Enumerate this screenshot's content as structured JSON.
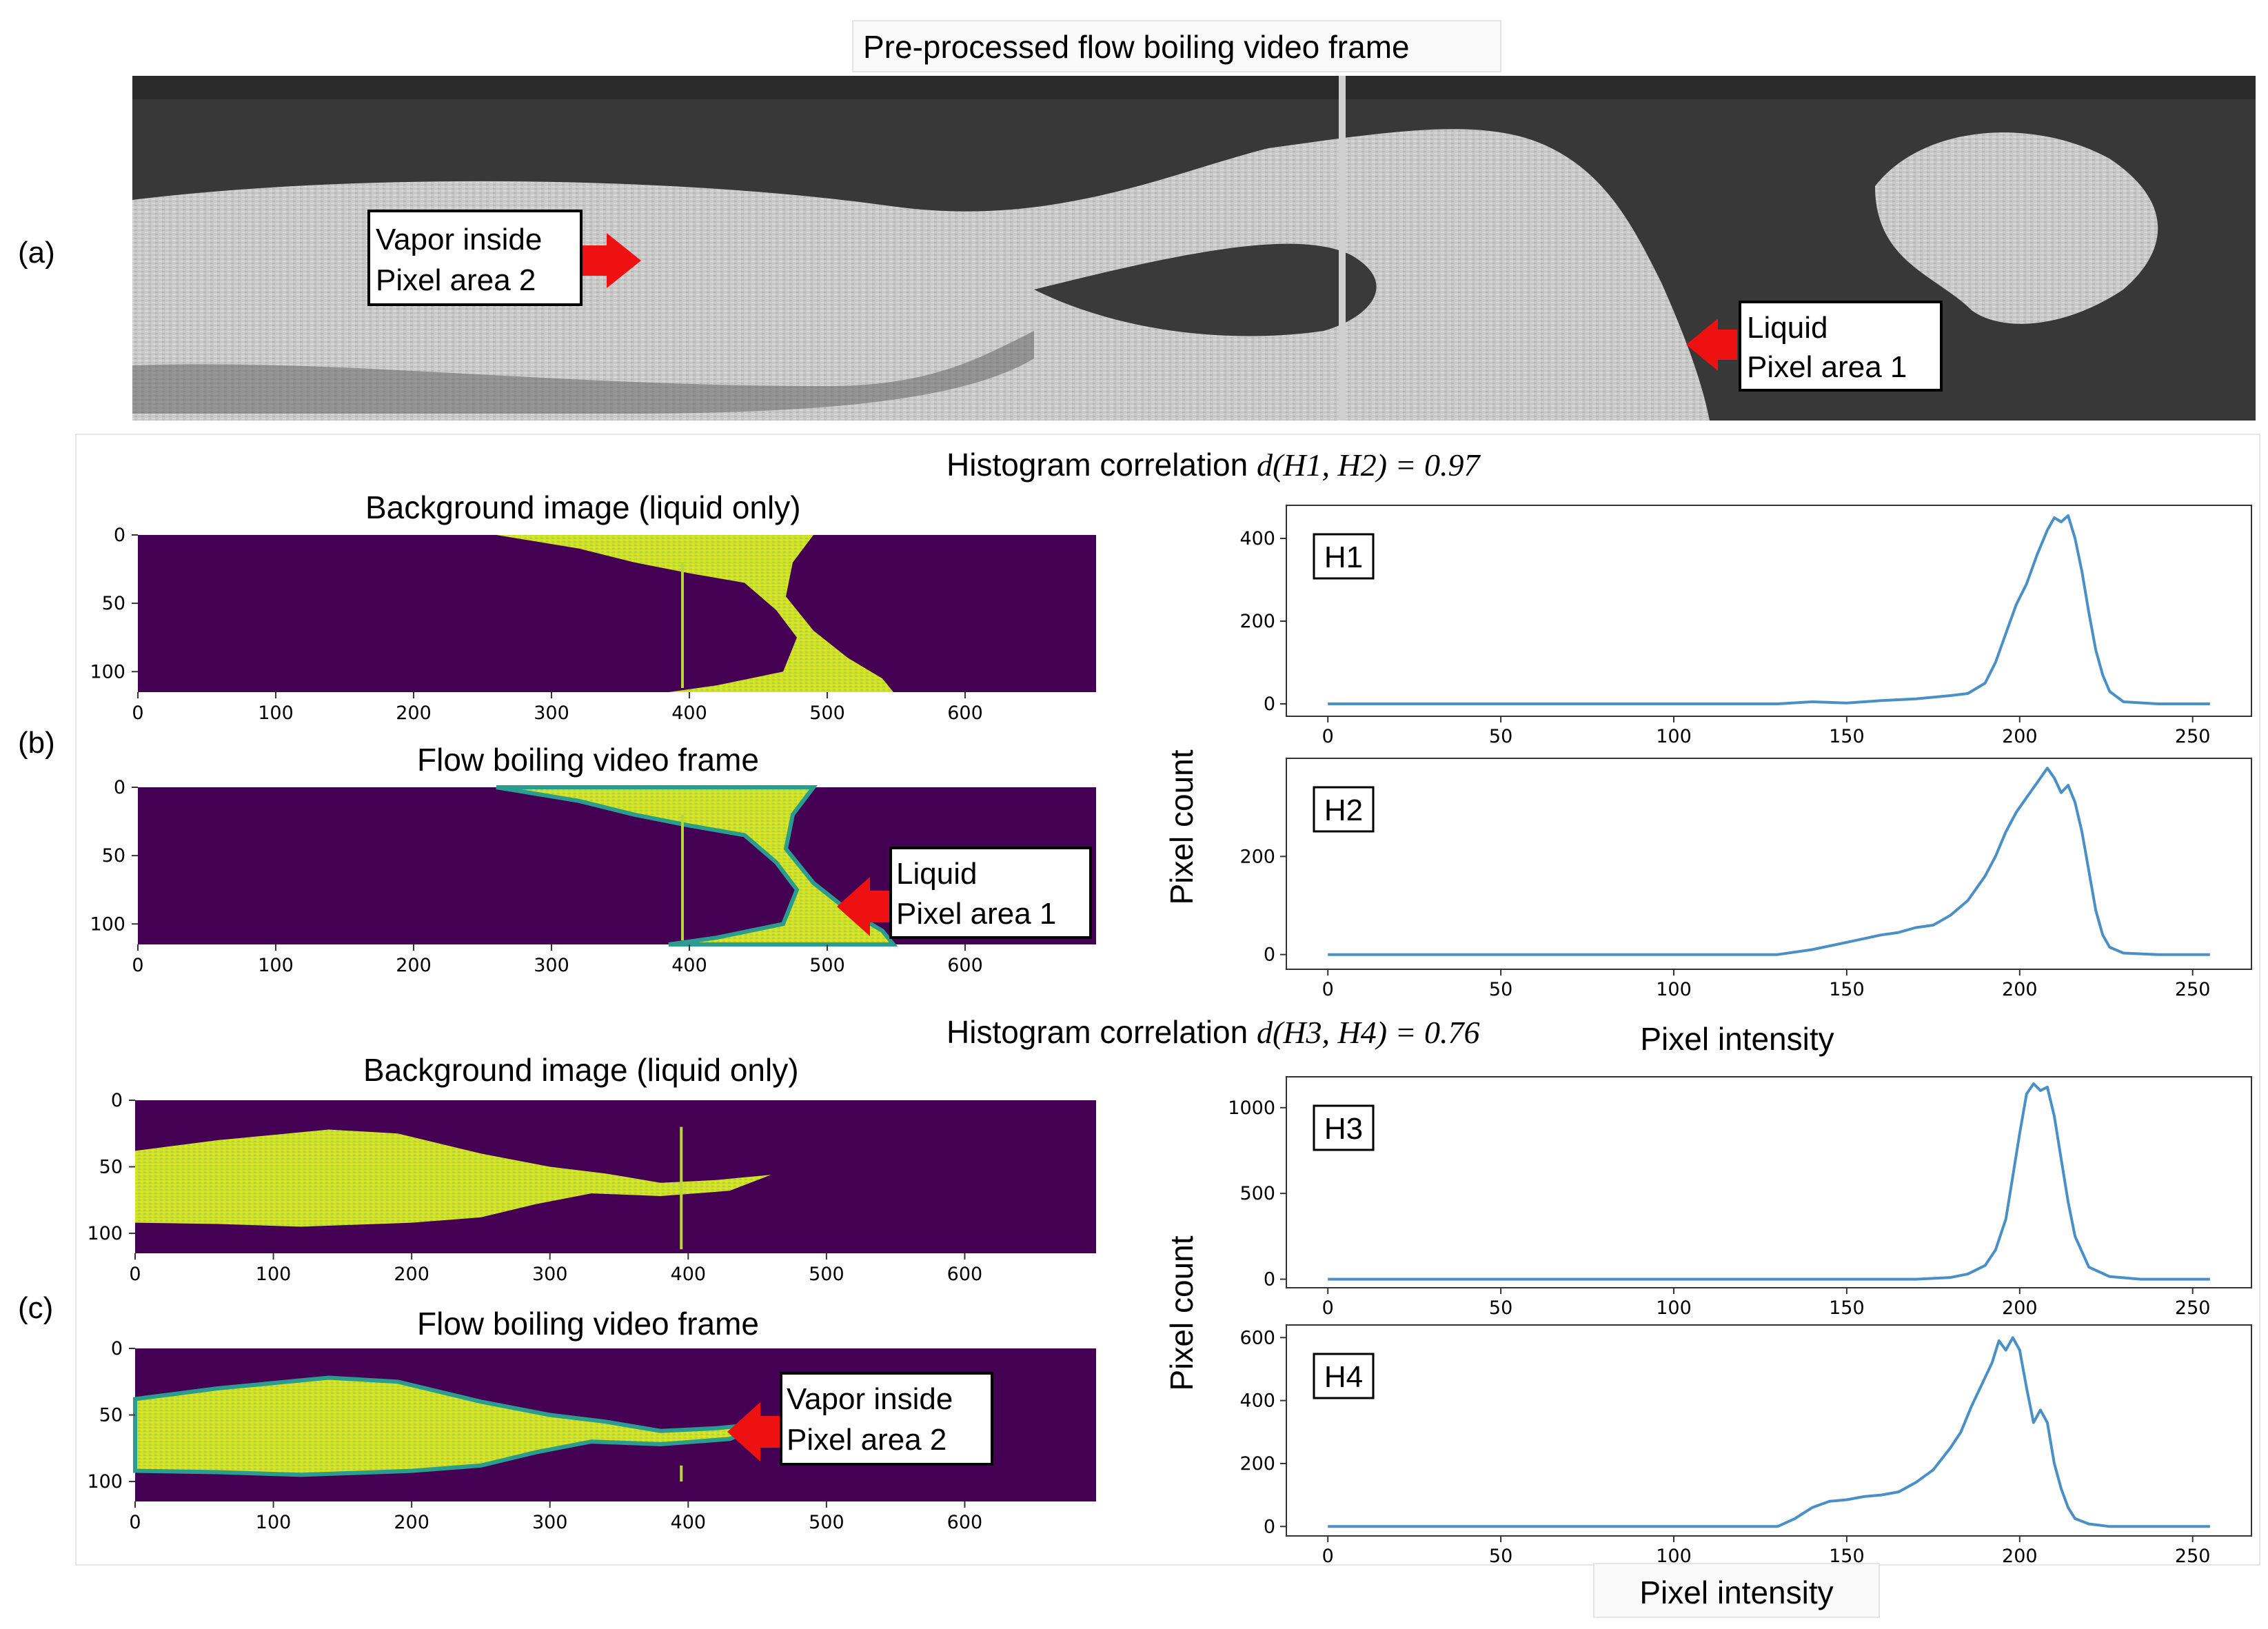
{
  "panel_a": {
    "tag": "(a)",
    "title": "Pre-processed flow boiling video frame",
    "callout_vapor": [
      "Vapor inside",
      "Pixel area 2"
    ],
    "callout_liquid": [
      "Liquid",
      "Pixel area 1"
    ]
  },
  "panel_b": {
    "tag": "(b)",
    "correlation_prefix": "Histogram correlation ",
    "correlation_expr": "d(H1, H2) = 0.97",
    "image_top_title": "Background image (liquid only)",
    "image_bottom_title": "Flow boiling video frame",
    "callout": [
      "Liquid",
      "Pixel area 1"
    ]
  },
  "panel_c": {
    "tag": "(c)",
    "correlation_prefix": "Histogram correlation ",
    "correlation_expr": "d(H3, H4) = 0.76",
    "image_top_title": "Background image (liquid only)",
    "image_bottom_title": "Flow boiling video frame",
    "callout": [
      "Vapor inside",
      "Pixel area 2"
    ]
  },
  "axis_labels": {
    "pixel_count": "Pixel count",
    "pixel_intensity": "Pixel intensity"
  },
  "image_axes": {
    "x_ticks": [
      0,
      100,
      200,
      300,
      400,
      500,
      600
    ],
    "y_ticks": [
      0,
      50,
      100
    ],
    "xlim": [
      0,
      695
    ],
    "ylim": [
      0,
      115
    ]
  },
  "colors": {
    "line": "#4a8fc6",
    "viridis_dark": "#440154",
    "viridis_bright": "#d6e32a",
    "arrow": "#ee1111"
  },
  "chart_data": [
    {
      "type": "line",
      "label": "H1",
      "x_ticks": [
        0,
        50,
        100,
        150,
        200,
        250
      ],
      "y_ticks": [
        0,
        200,
        400
      ],
      "xlim": [
        -12,
        267
      ],
      "ylim": [
        -30,
        480
      ],
      "x": [
        0,
        130,
        140,
        150,
        160,
        170,
        180,
        185,
        190,
        193,
        196,
        199,
        202,
        205,
        208,
        210,
        212,
        214,
        216,
        218,
        220,
        222,
        224,
        226,
        230,
        240,
        255
      ],
      "y": [
        0,
        0,
        5,
        2,
        8,
        12,
        20,
        25,
        50,
        100,
        170,
        240,
        290,
        360,
        420,
        450,
        440,
        455,
        400,
        320,
        220,
        130,
        70,
        30,
        5,
        0,
        0
      ]
    },
    {
      "type": "line",
      "label": "H2",
      "x_ticks": [
        0,
        50,
        100,
        150,
        200,
        250
      ],
      "y_ticks": [
        0,
        200
      ],
      "xlim": [
        -12,
        267
      ],
      "ylim": [
        -30,
        400
      ],
      "x": [
        0,
        130,
        140,
        150,
        160,
        165,
        170,
        175,
        180,
        185,
        190,
        193,
        196,
        199,
        202,
        205,
        208,
        210,
        212,
        214,
        216,
        218,
        220,
        222,
        224,
        226,
        230,
        240,
        255
      ],
      "y": [
        0,
        0,
        10,
        25,
        40,
        45,
        55,
        60,
        80,
        110,
        160,
        200,
        250,
        290,
        320,
        350,
        380,
        360,
        330,
        345,
        310,
        250,
        170,
        90,
        40,
        15,
        3,
        0,
        0
      ]
    },
    {
      "type": "line",
      "label": "H3",
      "x_ticks": [
        0,
        50,
        100,
        150,
        200,
        250
      ],
      "y_ticks": [
        0,
        500,
        1000
      ],
      "xlim": [
        -12,
        267
      ],
      "ylim": [
        -50,
        1180
      ],
      "x": [
        0,
        170,
        180,
        185,
        190,
        193,
        196,
        198,
        200,
        202,
        204,
        206,
        208,
        210,
        212,
        214,
        216,
        220,
        226,
        235,
        255
      ],
      "y": [
        0,
        0,
        10,
        30,
        80,
        170,
        350,
        600,
        850,
        1080,
        1140,
        1100,
        1120,
        950,
        700,
        450,
        250,
        70,
        15,
        0,
        0
      ]
    },
    {
      "type": "line",
      "label": "H4",
      "x_ticks": [
        0,
        50,
        100,
        150,
        200,
        250
      ],
      "y_ticks": [
        0,
        200,
        400,
        600
      ],
      "xlim": [
        -12,
        267
      ],
      "ylim": [
        -30,
        640
      ],
      "x": [
        0,
        130,
        135,
        140,
        145,
        150,
        155,
        160,
        165,
        170,
        175,
        180,
        183,
        186,
        189,
        192,
        194,
        196,
        198,
        200,
        202,
        204,
        206,
        208,
        210,
        212,
        214,
        216,
        220,
        226,
        255
      ],
      "y": [
        0,
        0,
        25,
        60,
        80,
        85,
        95,
        100,
        110,
        140,
        180,
        250,
        300,
        380,
        450,
        520,
        590,
        560,
        600,
        560,
        440,
        330,
        370,
        330,
        200,
        120,
        60,
        25,
        8,
        0,
        0
      ]
    }
  ]
}
